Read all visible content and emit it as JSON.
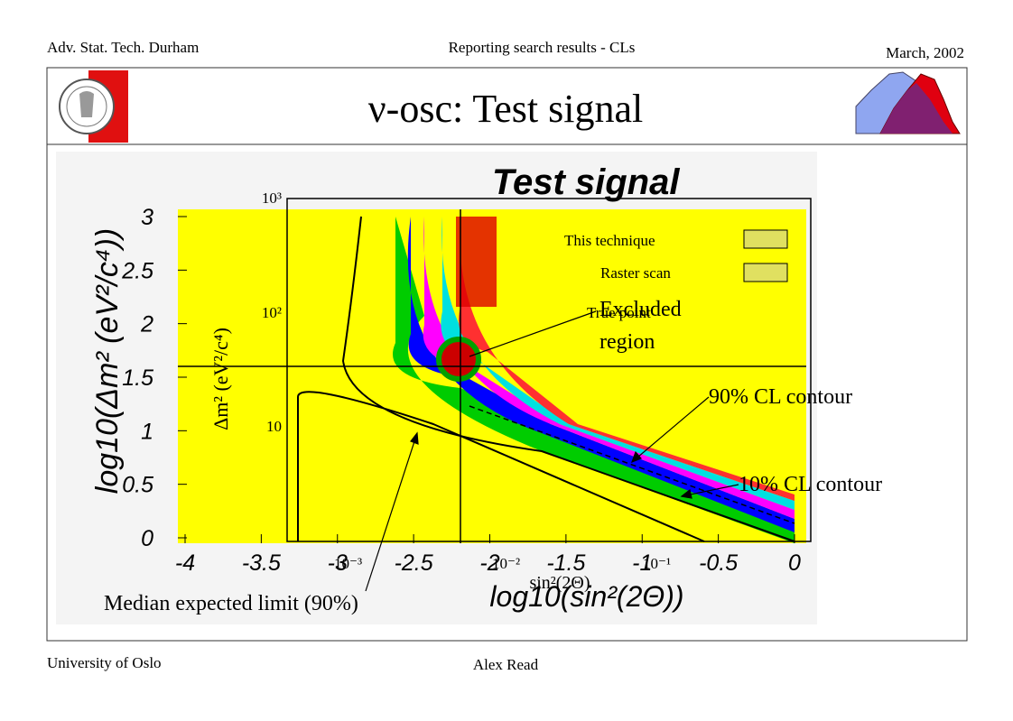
{
  "header": {
    "left": "Adv. Stat. Tech. Durham",
    "center": "Reporting search results - CLs",
    "right": "March, 2002"
  },
  "title": "ν-osc: Test signal",
  "figure": {
    "title": "Test signal",
    "y_label": "log10(Δm² (eV²/c⁴))",
    "y_ticks": [
      "3",
      "2.5",
      "2",
      "1.5",
      "1",
      "0.5",
      "0"
    ],
    "x_label": "log10(sin²(2Θ))",
    "x_ticks": [
      "-4",
      "-3.5",
      "-3",
      "-2.5",
      "-2",
      "-1.5",
      "-1",
      "-0.5",
      "0"
    ],
    "inner_y_label": "Δm² (eV²/c⁴)",
    "inner_y_ticks": [
      "10³",
      "10²",
      "10"
    ],
    "inner_x_label": "sin²(2Θ)",
    "inner_x_ticks": [
      "10⁻³",
      "10⁻²",
      "10⁻¹"
    ],
    "legend": [
      "This technique",
      "Raster scan"
    ],
    "true_point": "True point"
  },
  "annotations": {
    "excluded": [
      "Excluded",
      "region"
    ],
    "cl90": "90% CL contour",
    "cl10": "10% CL contour",
    "median": "Median expected limit (90%)"
  },
  "footer": {
    "left": "University of Oslo",
    "center": "Alex Read"
  }
}
